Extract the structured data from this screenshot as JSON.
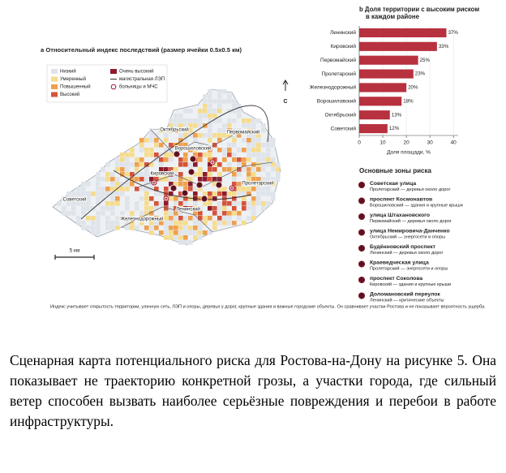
{
  "map": {
    "title": "a  Относительный индекс последствий (размер ячейки 0.5x0.5 км)",
    "legend": {
      "classes": [
        {
          "label": "Низкий",
          "color": "#dfe4ea"
        },
        {
          "label": "Умеренный",
          "color": "#f6dc8c"
        },
        {
          "label": "Повышенный",
          "color": "#efa04e"
        },
        {
          "label": "Высокий",
          "color": "#d5533a"
        },
        {
          "label": "Очень высокий",
          "color": "#8e1b2c"
        }
      ],
      "power_line": "магистральная ЛЭП",
      "hospitals": "больницы и МЧС"
    },
    "districts": [
      "Октябрьский",
      "Первомайский",
      "Ворошиловский",
      "Кировский",
      "Ленинский",
      "Пролетарский",
      "Железнодорожный",
      "Советский"
    ],
    "north": "С",
    "scale": "5 км"
  },
  "chart_data": {
    "type": "bar",
    "orientation": "horizontal",
    "title": "b  Доля территории с высоким риском в каждом районе",
    "categories": [
      "Ленинский",
      "Кировский",
      "Первомайский",
      "Пролетарский",
      "Железнодорожный",
      "Ворошиловский",
      "Октябрьский",
      "Советский"
    ],
    "values": [
      37,
      33,
      25,
      23,
      20,
      18,
      13,
      12
    ],
    "value_labels": [
      "37%",
      "33%",
      "25%",
      "23%",
      "20%",
      "18%",
      "13%",
      "12%"
    ],
    "color": "#b8313f",
    "xlabel": "Доля площади, %",
    "xlim": [
      0,
      42
    ],
    "xticks": [
      0,
      10,
      20,
      30,
      40
    ],
    "grid": true
  },
  "zones": {
    "title": "Основные зоны риска",
    "items": [
      {
        "number": "1",
        "name": "Советская улица",
        "detail": "Пролетарский — деревья около дорог"
      },
      {
        "number": "2",
        "name": "проспект Космонавтов",
        "detail": "Ворошиловский — здания и крупные крыши"
      },
      {
        "number": "3",
        "name": "улица Штахановского",
        "detail": "Первомайский — деревья около дорог"
      },
      {
        "number": "4",
        "name": "улица Немировича-Данченко",
        "detail": "Октябрьский — энергосети и опоры"
      },
      {
        "number": "5",
        "name": "Будённовский проспект",
        "detail": "Ленинский — деревья около дорог"
      },
      {
        "number": "6",
        "name": "Краеведческая улица",
        "detail": "Пролетарский — энергосети и опоры"
      },
      {
        "number": "7",
        "name": "проспект Соколова",
        "detail": "Кировский — здания и крупные крыши"
      },
      {
        "number": "8",
        "name": "Доломановский переулок",
        "detail": "Ленинский — критические объекты"
      }
    ]
  },
  "footnote": "Индекс учитывает открытость территории, уличную сеть, ЛЭП и опоры, деревья у дорог, крупные здания и важные городские объекты. Он сравнивает участки Ростова и не показывает вероятность ущерба.",
  "caption": "Сценарная карта потенциального риска для Ростова-на-Дону на рисунке 5. Она показывает не траекторию конкретной грозы, а участки города, где сильный ветер способен вызвать наиболее серьёзные повреждения и перебои в работе инфраструктуры."
}
